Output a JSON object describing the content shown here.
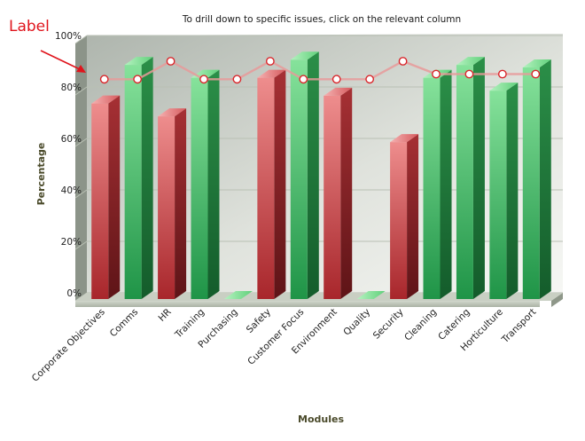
{
  "chart_data": {
    "type": "bar",
    "title": "To drill down to specific issues, click on the relevant column",
    "xlabel": "Modules",
    "ylabel": "Percentage",
    "ylim": [
      0,
      100
    ],
    "yticks": [
      "0%",
      "20%",
      "40%",
      "60%",
      "80%",
      "100%"
    ],
    "grid": true,
    "categories": [
      "Corporate Objectives",
      "Comms",
      "HR",
      "Training",
      "Purchasing",
      "Safety",
      "Customer Focus",
      "Environment",
      "Quality",
      "Security",
      "Cleaning",
      "Catering",
      "Horticulture",
      "Transport"
    ],
    "series": [
      {
        "type": "bar",
        "values": [
          76,
          91,
          71,
          86,
          0,
          86,
          93,
          79,
          0,
          61,
          86,
          91,
          81,
          90
        ],
        "colors": [
          "red",
          "green",
          "red",
          "green",
          "green",
          "red",
          "green",
          "red",
          "green",
          "red",
          "green",
          "green",
          "green",
          "green"
        ]
      },
      {
        "type": "line",
        "values": [
          83,
          83,
          90,
          83,
          83,
          90,
          83,
          83,
          83,
          90,
          85,
          85,
          85,
          85
        ]
      }
    ],
    "annotation": "Label",
    "colors": {
      "red_bar": "#c0393c",
      "green_bar": "#2ea653",
      "line": "#e89a9a"
    }
  }
}
